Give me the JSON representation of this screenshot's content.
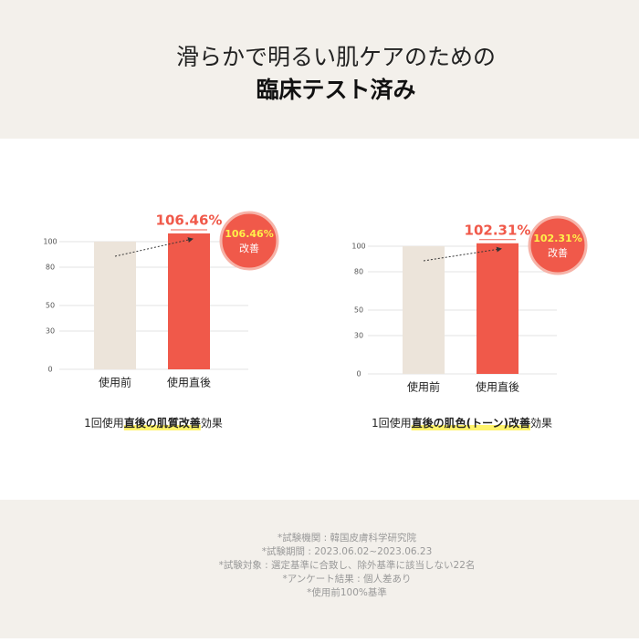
{
  "header": {
    "title": "滑らかで明るい肌ケアのための",
    "subtitle": "臨床テスト済み"
  },
  "chart_data": [
    {
      "type": "bar",
      "categories": [
        "使用前",
        "使用直後"
      ],
      "values": [
        100,
        106.46
      ],
      "value_labels": [
        null,
        "106.46%"
      ],
      "colors": [
        "#ece4da",
        "#f0594a"
      ],
      "ylim": [
        0,
        110
      ],
      "yticks": [
        0,
        30,
        50,
        80,
        100
      ],
      "grid": true,
      "badge_text": "改善",
      "caption": [
        "1回使用",
        "直後の肌質改善",
        "効果"
      ]
    },
    {
      "type": "bar",
      "categories": [
        "使用前",
        "使用直後"
      ],
      "values": [
        100,
        102.31
      ],
      "value_labels": [
        null,
        "102.31%"
      ],
      "colors": [
        "#ece4da",
        "#f0594a"
      ],
      "ylim": [
        0,
        110
      ],
      "yticks": [
        0,
        30,
        50,
        80,
        100
      ],
      "grid": true,
      "badge_text": "改善",
      "caption": [
        "1回使用",
        "直後の肌色(トーン)改善",
        "効果"
      ]
    }
  ],
  "footnotes": [
    "*試験機関 : 韓国皮膚科学研究院",
    "*試験期間 : 2023.06.02~2023.06.23",
    "*試験対象 : 選定基準に合致し、除外基準に該当しない22名",
    "*アンケート結果 : 個人差あり",
    "*使用前100%基準"
  ]
}
